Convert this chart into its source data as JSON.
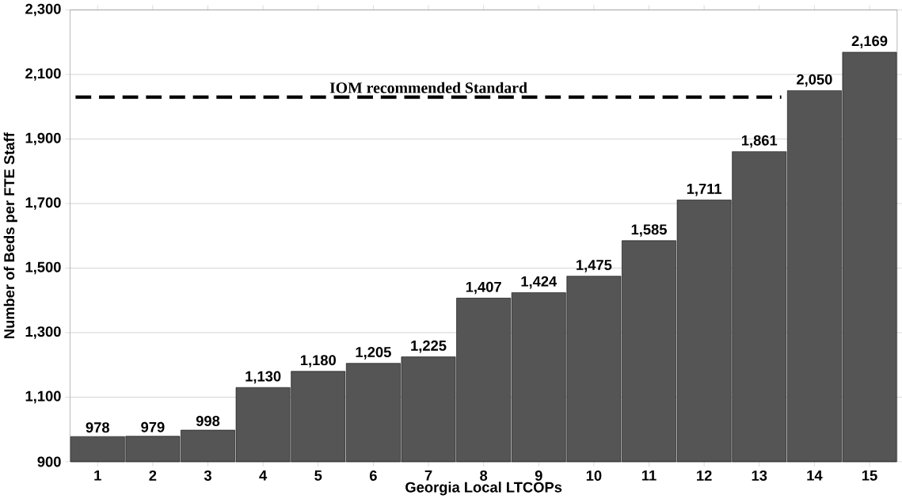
{
  "chart_data": {
    "type": "bar",
    "xlabel": "Georgia Local LTCOPs",
    "ylabel": "Number of Beds per FTE Staff",
    "categories": [
      "1",
      "2",
      "3",
      "4",
      "5",
      "6",
      "7",
      "8",
      "9",
      "10",
      "11",
      "12",
      "13",
      "14",
      "15"
    ],
    "values": [
      978,
      979,
      998,
      1130,
      1180,
      1205,
      1225,
      1407,
      1424,
      1475,
      1585,
      1711,
      1861,
      2050,
      2169
    ],
    "value_labels": [
      "978",
      "979",
      "998",
      "1,130",
      "1,180",
      "1,205",
      "1,225",
      "1,407",
      "1,424",
      "1,475",
      "1,585",
      "1,711",
      "1,861",
      "2,050",
      "2,169"
    ],
    "color": "#555555",
    "ylim": [
      900,
      2300
    ],
    "yticks": [
      900,
      {
        "value": 1100,
        "label": "1,100"
      },
      {
        "value": 1300,
        "label": "1,300"
      },
      {
        "value": 1500,
        "label": "1,500"
      },
      {
        "value": 1700,
        "label": "1,700"
      },
      {
        "value": 1900,
        "label": "1,900"
      },
      {
        "value": 2100,
        "label": "2,100"
      },
      {
        "value": 2300,
        "label": "2,300"
      }
    ],
    "grid": "y",
    "ref_lines": [
      {
        "axis": "y",
        "value": 2030,
        "label": "IOM recommended Standard",
        "color": "#000000",
        "line_style": "dashed"
      }
    ]
  }
}
